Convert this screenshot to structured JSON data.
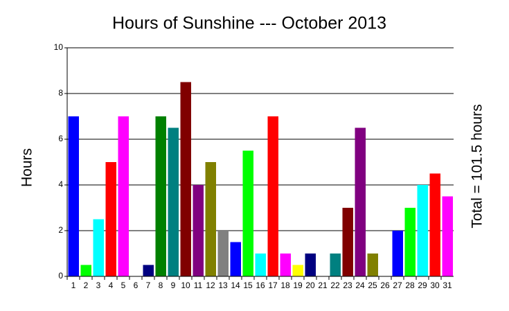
{
  "chart_data": {
    "type": "bar",
    "title": "Hours of Sunshine --- October 2013",
    "y_label": "Hours",
    "annotation": "Total = 101.5 hours",
    "categories": [
      "1",
      "2",
      "3",
      "4",
      "5",
      "6",
      "7",
      "8",
      "9",
      "10",
      "11",
      "12",
      "13",
      "14",
      "15",
      "16",
      "17",
      "18",
      "19",
      "20",
      "21",
      "22",
      "23",
      "24",
      "25",
      "26",
      "27",
      "28",
      "29",
      "30",
      "31"
    ],
    "values": [
      7,
      0.5,
      2.5,
      5,
      7,
      0,
      0.5,
      7,
      6.5,
      8.5,
      4,
      5,
      2,
      1.5,
      5.5,
      1,
      7,
      1,
      0.5,
      1,
      0,
      1,
      3,
      6.5,
      1,
      0,
      2,
      3,
      4,
      4.5,
      3.5
    ],
    "colors": [
      "#0000ff",
      "#00ff00",
      "#00ffff",
      "#ff0000",
      "#ff00ff",
      "#ffff00",
      "#000080",
      "#008000",
      "#008080",
      "#800000",
      "#800080",
      "#808000",
      "#808080",
      "#0000ff",
      "#00ff00",
      "#00ffff",
      "#ff0000",
      "#ff00ff",
      "#ffff00",
      "#000080",
      "#008000",
      "#008080",
      "#800000",
      "#800080",
      "#808000",
      "#808080",
      "#0000ff",
      "#00ff00",
      "#00ffff",
      "#ff0000",
      "#ff00ff"
    ],
    "ylim": [
      0,
      10
    ],
    "yticks": [
      0,
      2,
      4,
      6,
      8,
      10
    ],
    "grid": true
  }
}
